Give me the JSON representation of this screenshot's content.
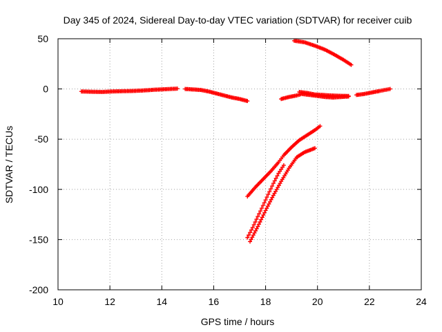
{
  "chart_data": {
    "type": "scatter",
    "title": "Day 345 of 2024, Sidereal Day-to-day VTEC variation (SDTVAR) for receiver cuib",
    "xlabel": "GPS time / hours",
    "ylabel": "SDTVAR / TECUs",
    "xlim": [
      10,
      24
    ],
    "ylim": [
      -200,
      50
    ],
    "xticks": [
      "10",
      "12",
      "14",
      "16",
      "18",
      "20",
      "22",
      "24"
    ],
    "yticks": [
      "50",
      "0",
      "-50",
      "-100",
      "-150",
      "-200"
    ],
    "grid": true,
    "legend": "none",
    "marker": "plus",
    "color": "#ff0000",
    "series": [
      {
        "points": [
          [
            10.9,
            -2.5
          ],
          [
            11.3,
            -2.8
          ],
          [
            11.7,
            -3.0
          ],
          [
            12.1,
            -2.5
          ],
          [
            12.5,
            -2.2
          ],
          [
            12.9,
            -2.0
          ],
          [
            13.3,
            -1.5
          ],
          [
            13.7,
            -0.8
          ],
          [
            14.1,
            -0.3
          ],
          [
            14.6,
            0.3
          ]
        ]
      },
      {
        "points": [
          [
            14.9,
            0.0
          ],
          [
            15.2,
            -0.5
          ],
          [
            15.5,
            -1.0
          ],
          [
            15.8,
            -2.5
          ],
          [
            16.1,
            -4.5
          ],
          [
            16.4,
            -6.5
          ],
          [
            16.7,
            -8.5
          ],
          [
            17.0,
            -10.0
          ],
          [
            17.3,
            -12.0
          ]
        ]
      },
      {
        "points": [
          [
            18.6,
            -10.0
          ],
          [
            18.9,
            -8.0
          ],
          [
            19.2,
            -6.5
          ],
          [
            19.4,
            -5.0
          ],
          [
            19.7,
            -6.0
          ],
          [
            20.0,
            -7.0
          ],
          [
            20.3,
            -8.0
          ],
          [
            20.6,
            -8.5
          ],
          [
            20.9,
            -8.0
          ],
          [
            21.2,
            -7.5
          ]
        ]
      },
      {
        "points": [
          [
            19.3,
            -3.0
          ],
          [
            19.6,
            -4.0
          ],
          [
            19.9,
            -5.5
          ],
          [
            20.2,
            -6.0
          ],
          [
            20.5,
            -6.5
          ],
          [
            20.8,
            -6.8
          ],
          [
            21.2,
            -7.0
          ]
        ]
      },
      {
        "points": [
          [
            21.5,
            -6.0
          ],
          [
            21.8,
            -5.0
          ],
          [
            22.1,
            -3.5
          ],
          [
            22.4,
            -2.0
          ],
          [
            22.6,
            -1.0
          ],
          [
            22.8,
            0.0
          ]
        ]
      },
      {
        "points": [
          [
            19.1,
            48.0
          ],
          [
            19.5,
            46.5
          ],
          [
            19.9,
            43.0
          ],
          [
            20.3,
            39.0
          ],
          [
            20.7,
            33.5
          ],
          [
            21.0,
            29.0
          ],
          [
            21.3,
            24.0
          ]
        ]
      },
      {
        "points": [
          [
            17.3,
            -107.0
          ],
          [
            17.6,
            -98.0
          ],
          [
            17.9,
            -90.0
          ],
          [
            18.2,
            -82.0
          ],
          [
            18.5,
            -73.0
          ],
          [
            18.7,
            -66.0
          ],
          [
            19.0,
            -58.0
          ],
          [
            19.3,
            -51.0
          ],
          [
            19.6,
            -46.0
          ],
          [
            19.9,
            -41.0
          ],
          [
            20.1,
            -37.0
          ]
        ]
      },
      {
        "points": [
          [
            17.3,
            -148.0
          ],
          [
            17.5,
            -138.0
          ],
          [
            17.7,
            -127.0
          ],
          [
            17.9,
            -116.0
          ],
          [
            18.1,
            -105.0
          ],
          [
            18.3,
            -94.0
          ],
          [
            18.5,
            -84.0
          ],
          [
            18.7,
            -76.0
          ]
        ]
      },
      {
        "points": [
          [
            17.4,
            -152.0
          ],
          [
            17.7,
            -137.0
          ],
          [
            18.0,
            -121.0
          ],
          [
            18.3,
            -106.0
          ],
          [
            18.6,
            -92.0
          ],
          [
            18.9,
            -79.0
          ],
          [
            19.2,
            -68.0
          ],
          [
            19.5,
            -63.0
          ],
          [
            19.9,
            -59.0
          ]
        ]
      }
    ]
  }
}
